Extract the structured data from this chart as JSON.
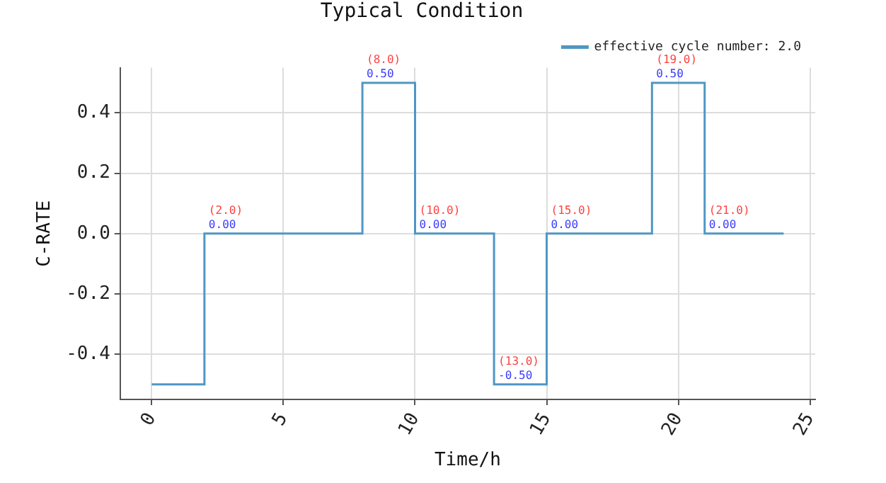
{
  "chart_data": {
    "type": "step",
    "title": "Typical Condition",
    "xlabel": "Time/h",
    "ylabel": "C-RATE",
    "series": [
      {
        "name": "effective cycle number: 2.0",
        "color": "#4f97c4",
        "x": [
          0,
          2,
          8,
          10,
          13,
          15,
          19,
          21,
          24
        ],
        "values": [
          -0.5,
          0,
          0.5,
          0,
          -0.5,
          0,
          0.5,
          0,
          0
        ]
      }
    ],
    "xlim": [
      -1.2,
      25.2
    ],
    "xticks": [
      0,
      5,
      10,
      15,
      20,
      25
    ],
    "ylim": [
      -0.55,
      0.55
    ],
    "yticks": [
      {
        "value": -0.4,
        "label": "-0.4"
      },
      {
        "value": -0.2,
        "label": "-0.2"
      },
      {
        "value": 0,
        "label": "0.0"
      },
      {
        "value": 0.2,
        "label": "0.2"
      },
      {
        "value": 0.4,
        "label": "0.4"
      }
    ],
    "grid": true,
    "legend": "top right",
    "annotations": [
      {
        "text": "(2.0)",
        "x": 2,
        "y": 0
      },
      {
        "text": "0.00",
        "x": 2,
        "y": 0
      },
      {
        "text": "(8.0)",
        "x": 8,
        "y": 0.5
      },
      {
        "text": "0.50",
        "x": 8,
        "y": 0.5
      },
      {
        "text": "(10.0)",
        "x": 10,
        "y": 0
      },
      {
        "text": "0.00",
        "x": 10,
        "y": 0
      },
      {
        "text": "(13.0)",
        "x": 13,
        "y": -0.5
      },
      {
        "text": "-0.50",
        "x": 13,
        "y": -0.5
      },
      {
        "text": "(15.0)",
        "x": 15,
        "y": 0
      },
      {
        "text": "0.00",
        "x": 15,
        "y": 0
      },
      {
        "text": "(19.0)",
        "x": 19,
        "y": 0.5
      },
      {
        "text": "0.50",
        "x": 19,
        "y": 0.5
      },
      {
        "text": "(21.0)",
        "x": 21,
        "y": 0
      },
      {
        "text": "0.00",
        "x": 21,
        "y": 0
      }
    ]
  }
}
